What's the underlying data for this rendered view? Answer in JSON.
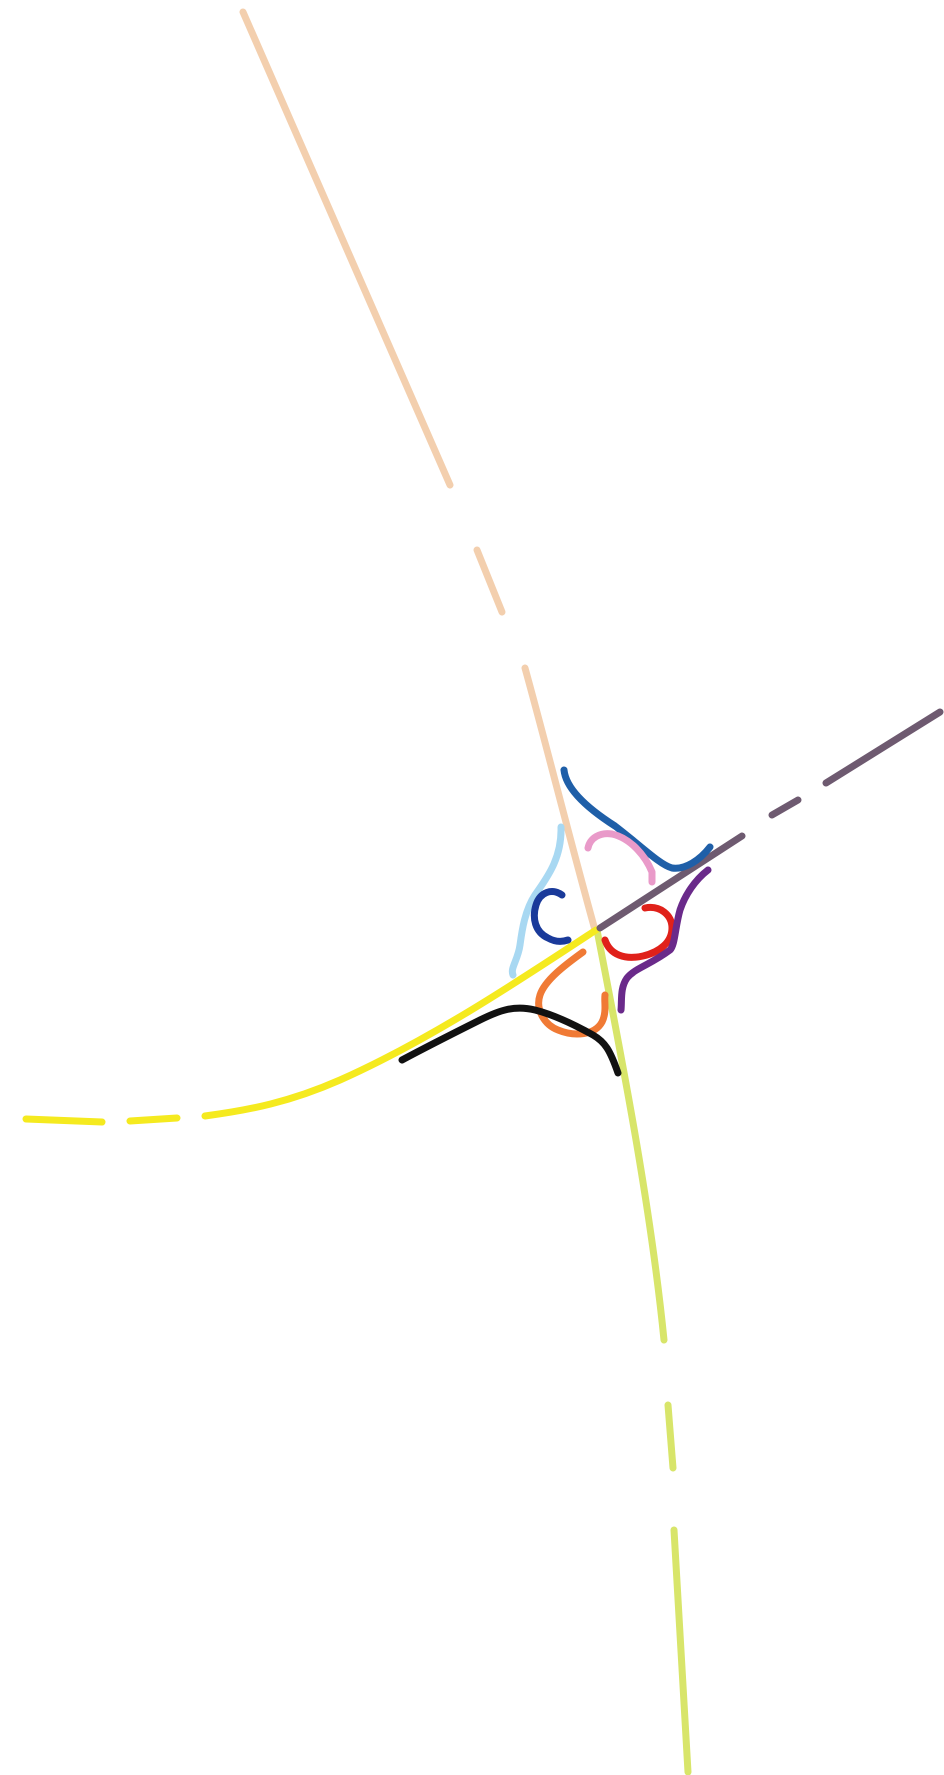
{
  "diagram": {
    "type": "interchange-schematic",
    "background": "#ffffff",
    "mainlines": [
      {
        "id": "north-approach",
        "color": "#f3cfae"
      },
      {
        "id": "south-approach",
        "color": "#d8e56a"
      },
      {
        "id": "west-approach",
        "color": "#f5ea1f"
      },
      {
        "id": "east-approach",
        "color": "#6e5a70"
      }
    ],
    "ramps": [
      {
        "id": "ramp-north-east-outer",
        "color": "#1f5fa8"
      },
      {
        "id": "ramp-north-west-outer",
        "color": "#a8d8f2"
      },
      {
        "id": "ramp-loop-pink",
        "color": "#e99ac9"
      },
      {
        "id": "ramp-loop-navy",
        "color": "#1a3a9a"
      },
      {
        "id": "ramp-loop-red",
        "color": "#e0211a"
      },
      {
        "id": "ramp-south-east-outer",
        "color": "#6a2a8a"
      },
      {
        "id": "ramp-loop-orange",
        "color": "#f07a35"
      },
      {
        "id": "ramp-south-west-outer",
        "color": "#111111"
      }
    ]
  }
}
